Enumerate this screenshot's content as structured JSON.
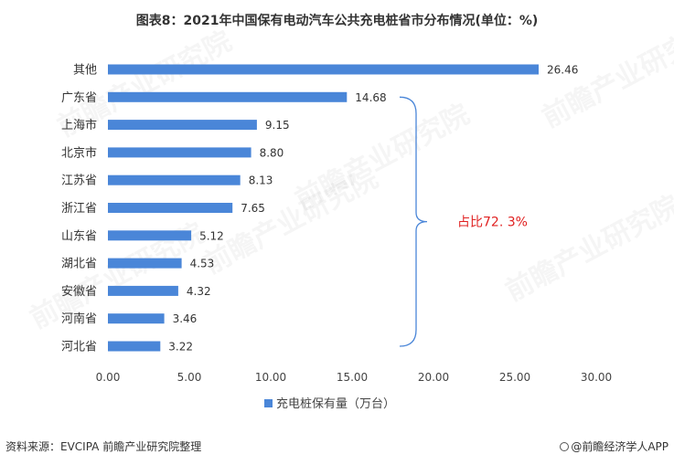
{
  "chart_data": {
    "type": "bar",
    "orientation": "horizontal",
    "title": "图表8：2021年中国保有电动汽车公共充电桩省市分布情况(单位：%)",
    "categories": [
      "其他",
      "广东省",
      "上海市",
      "北京市",
      "江苏省",
      "浙江省",
      "山东省",
      "湖北省",
      "安徽省",
      "河南省",
      "河北省"
    ],
    "series": [
      {
        "name": "充电桩保有量（万台）",
        "values": [
          26.46,
          14.68,
          9.15,
          8.8,
          8.13,
          7.65,
          5.12,
          4.53,
          4.32,
          3.46,
          3.22
        ],
        "value_labels": [
          "26.46",
          "14.68",
          "9.15",
          "8.80",
          "8.13",
          "7.65",
          "5.12",
          "4.53",
          "4.32",
          "3.46",
          "3.22"
        ],
        "color": "#4a86d8"
      }
    ],
    "xlim": [
      0,
      30
    ],
    "xticks": [
      "0.00",
      "5.00",
      "10.00",
      "15.00",
      "20.00",
      "25.00",
      "30.00"
    ],
    "xtick_values": [
      0,
      5,
      10,
      15,
      20,
      25,
      30
    ],
    "grid": false,
    "legend_position": "bottom",
    "annotation": {
      "text": "占比72. 3%",
      "color": "#e02020",
      "bracket_color": "#4a86d8",
      "spans_categories": [
        "广东省",
        "河北省"
      ]
    }
  },
  "footer": {
    "source": "资料来源：EVCIPA 前瞻产业研究院整理",
    "brand": "@前瞻经济学人APP"
  },
  "watermark": "前瞻产业研究院"
}
